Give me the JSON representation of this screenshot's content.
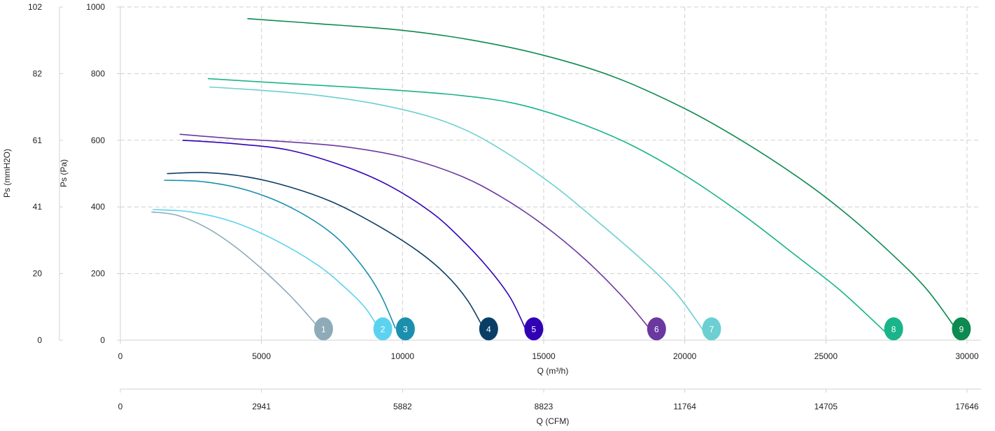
{
  "chart_data": {
    "type": "line",
    "xlabel": "Q (m³/h)",
    "xlabel_secondary": "Q (CFM)",
    "ylabel": "Ps (Pa)",
    "ylabel_secondary": "Ps (mmH2O)",
    "xlim": [
      0,
      30000
    ],
    "ylim": [
      0,
      1000
    ],
    "grid": true,
    "x_ticks": [
      "0",
      "5000",
      "10000",
      "15000",
      "20000",
      "25000",
      "30000"
    ],
    "y_ticks": [
      "0",
      "200",
      "400",
      "600",
      "800",
      "1000"
    ],
    "x_ticks_secondary": [
      "0",
      "2941",
      "5882",
      "8823",
      "11764",
      "14705",
      "17646"
    ],
    "y_ticks_secondary": [
      "0",
      "20",
      "41",
      "61",
      "82",
      "102"
    ],
    "series": [
      {
        "name": "1",
        "color": "#8fabb8",
        "label_x": 7200,
        "points": [
          [
            1100,
            385
          ],
          [
            2000,
            375
          ],
          [
            3000,
            340
          ],
          [
            4000,
            285
          ],
          [
            5000,
            215
          ],
          [
            6000,
            135
          ],
          [
            6700,
            70
          ],
          [
            7050,
            35
          ]
        ]
      },
      {
        "name": "2",
        "color": "#5bd3f0",
        "label_x": 9300,
        "points": [
          [
            1150,
            392
          ],
          [
            2500,
            385
          ],
          [
            4000,
            355
          ],
          [
            5500,
            300
          ],
          [
            7000,
            225
          ],
          [
            8000,
            155
          ],
          [
            8700,
            95
          ],
          [
            9150,
            35
          ]
        ]
      },
      {
        "name": "3",
        "color": "#1b8fae",
        "label_x": 10100,
        "points": [
          [
            1550,
            480
          ],
          [
            3000,
            475
          ],
          [
            4500,
            450
          ],
          [
            6000,
            400
          ],
          [
            7500,
            320
          ],
          [
            8500,
            230
          ],
          [
            9200,
            140
          ],
          [
            9750,
            35
          ]
        ]
      },
      {
        "name": "4",
        "color": "#0a3e66",
        "label_x": 13050,
        "points": [
          [
            1650,
            500
          ],
          [
            3000,
            503
          ],
          [
            4500,
            490
          ],
          [
            6000,
            460
          ],
          [
            7500,
            415
          ],
          [
            9000,
            350
          ],
          [
            10500,
            270
          ],
          [
            11500,
            200
          ],
          [
            12300,
            120
          ],
          [
            12900,
            30
          ]
        ]
      },
      {
        "name": "5",
        "color": "#3200b4",
        "label_x": 14650,
        "points": [
          [
            2200,
            600
          ],
          [
            4000,
            590
          ],
          [
            6000,
            570
          ],
          [
            8000,
            520
          ],
          [
            9500,
            465
          ],
          [
            11000,
            385
          ],
          [
            12000,
            310
          ],
          [
            13000,
            220
          ],
          [
            13800,
            130
          ],
          [
            14350,
            35
          ]
        ]
      },
      {
        "name": "6",
        "color": "#6b38a0",
        "label_x": 19000,
        "points": [
          [
            2100,
            618
          ],
          [
            4000,
            605
          ],
          [
            6000,
            595
          ],
          [
            8000,
            580
          ],
          [
            10000,
            550
          ],
          [
            12000,
            495
          ],
          [
            13500,
            430
          ],
          [
            15000,
            345
          ],
          [
            16500,
            240
          ],
          [
            17800,
            130
          ],
          [
            18750,
            35
          ]
        ]
      },
      {
        "name": "7",
        "color": "#6ccfd2",
        "label_x": 20950,
        "points": [
          [
            3150,
            760
          ],
          [
            5000,
            750
          ],
          [
            7000,
            735
          ],
          [
            9000,
            710
          ],
          [
            11000,
            670
          ],
          [
            12500,
            620
          ],
          [
            14000,
            545
          ],
          [
            15500,
            455
          ],
          [
            17000,
            350
          ],
          [
            18500,
            240
          ],
          [
            19700,
            140
          ],
          [
            20650,
            30
          ]
        ]
      },
      {
        "name": "8",
        "color": "#1ab48a",
        "label_x": 27400,
        "points": [
          [
            3100,
            785
          ],
          [
            6000,
            770
          ],
          [
            9000,
            755
          ],
          [
            12000,
            735
          ],
          [
            14000,
            710
          ],
          [
            16000,
            660
          ],
          [
            18000,
            590
          ],
          [
            20000,
            495
          ],
          [
            22000,
            380
          ],
          [
            24000,
            250
          ],
          [
            25500,
            150
          ],
          [
            27100,
            25
          ]
        ]
      },
      {
        "name": "9",
        "color": "#0d8a50",
        "label_x": 29800,
        "points": [
          [
            4500,
            965
          ],
          [
            7000,
            950
          ],
          [
            10000,
            930
          ],
          [
            12500,
            900
          ],
          [
            15000,
            855
          ],
          [
            17500,
            790
          ],
          [
            20000,
            695
          ],
          [
            22000,
            600
          ],
          [
            24000,
            490
          ],
          [
            25500,
            395
          ],
          [
            27000,
            285
          ],
          [
            28500,
            160
          ],
          [
            29600,
            35
          ]
        ]
      }
    ]
  }
}
